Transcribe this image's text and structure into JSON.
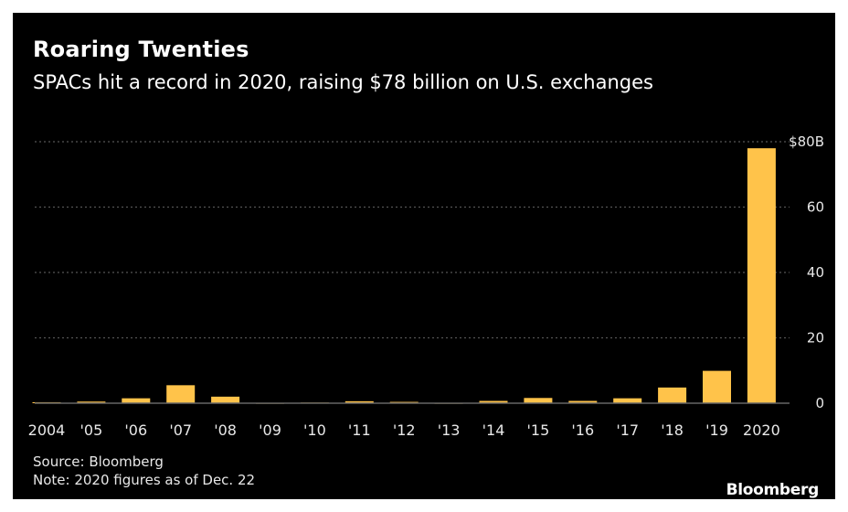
{
  "header": {
    "title": "Roaring Twenties",
    "subtitle": "SPACs hit a record in 2020, raising $78 billion on U.S. exchanges"
  },
  "footer": {
    "source": "Source: Bloomberg",
    "note": "Note: 2020 figures as of Dec. 22",
    "brand": "Bloomberg"
  },
  "colors": {
    "background": "#000000",
    "bar": "#ffc34a",
    "gridline": "#555555",
    "text": "#e8e8e8"
  },
  "chart_data": {
    "type": "bar",
    "title": "Roaring Twenties",
    "subtitle": "SPACs hit a record in 2020, raising $78 billion on U.S. exchanges",
    "categories": [
      "2004",
      "'05",
      "'06",
      "'07",
      "'08",
      "'09",
      "'10",
      "'11",
      "'12",
      "'13",
      "'14",
      "'15",
      "'16",
      "'17",
      "'18",
      "'19",
      "2020"
    ],
    "values": [
      0.3,
      0.5,
      1.5,
      5.5,
      2.0,
      0.1,
      0.2,
      0.6,
      0.4,
      0.1,
      0.7,
      1.6,
      0.7,
      1.5,
      4.8,
      9.9,
      78.0
    ],
    "y_ticks": [
      {
        "value": 0,
        "label": "0"
      },
      {
        "value": 20,
        "label": "20"
      },
      {
        "value": 40,
        "label": "40"
      },
      {
        "value": 60,
        "label": "60"
      },
      {
        "value": 80,
        "label": "$80B"
      }
    ],
    "ylim": [
      0,
      80
    ],
    "grid": true,
    "y_axis_position": "right",
    "xlabel": "",
    "ylabel": ""
  }
}
